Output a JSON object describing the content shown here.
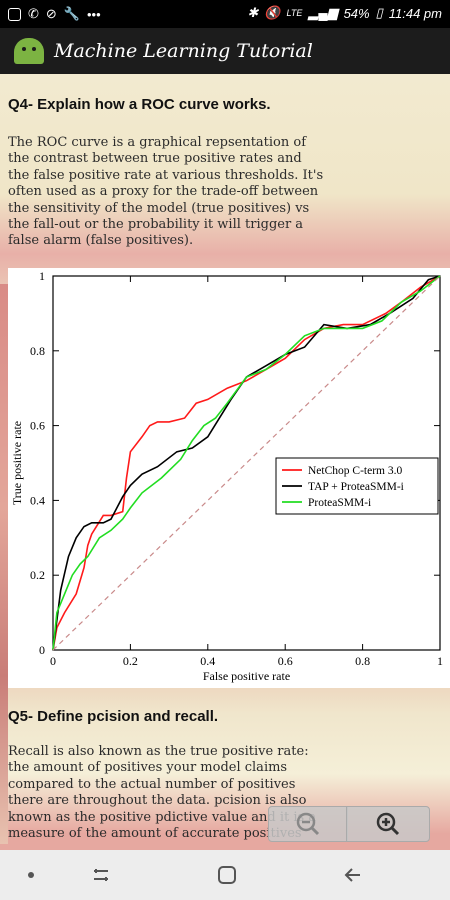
{
  "status_bar": {
    "battery": "54%",
    "time": "11:44 pm",
    "network": "LTE"
  },
  "app_bar": {
    "title": "Machine Learning Tutorial"
  },
  "q4": {
    "heading": "Q4- Explain how a ROC curve works.",
    "lines": [
      "The ROC curve is a graphical repsentation of",
      "the contrast between true positive rates and",
      "the false positive rate at various thresholds. It's",
      "often used as a proxy for the trade-off between",
      "the sensitivity of the model (true positives) vs",
      "the fall-out or the probability it will trigger a",
      "false alarm (false positives)."
    ]
  },
  "q5": {
    "heading": "Q5- Define pcision and recall.",
    "lines": [
      "Recall is also known as the true positive rate:",
      "the amount of positives your model claims",
      "compared to the actual number of positives",
      "there are throughout the data. pcision is also",
      "known as the positive pdictive value and it is a",
      "measure of the amount of accurate positives"
    ]
  },
  "chart_data": {
    "type": "line",
    "xlabel": "False positive rate",
    "ylabel": "True positive rate",
    "xlim": [
      0,
      1
    ],
    "ylim": [
      0,
      1
    ],
    "x_ticks": [
      "0",
      "0.2",
      "0.4",
      "0.6",
      "0.8",
      "1"
    ],
    "y_ticks": [
      "0",
      "0.2",
      "0.4",
      "0.6",
      "0.8",
      "1"
    ],
    "legend_position": "center-right",
    "series": [
      {
        "name": "NetChop C-term 3.0",
        "color": "#ff1a1a",
        "points": [
          [
            0,
            0
          ],
          [
            0.01,
            0.06
          ],
          [
            0.03,
            0.1
          ],
          [
            0.06,
            0.15
          ],
          [
            0.08,
            0.22
          ],
          [
            0.09,
            0.28
          ],
          [
            0.1,
            0.31
          ],
          [
            0.13,
            0.36
          ],
          [
            0.15,
            0.36
          ],
          [
            0.18,
            0.37
          ],
          [
            0.19,
            0.46
          ],
          [
            0.2,
            0.53
          ],
          [
            0.23,
            0.57
          ],
          [
            0.25,
            0.6
          ],
          [
            0.27,
            0.61
          ],
          [
            0.3,
            0.61
          ],
          [
            0.34,
            0.62
          ],
          [
            0.37,
            0.66
          ],
          [
            0.4,
            0.67
          ],
          [
            0.45,
            0.7
          ],
          [
            0.5,
            0.72
          ],
          [
            0.55,
            0.75
          ],
          [
            0.6,
            0.78
          ],
          [
            0.65,
            0.83
          ],
          [
            0.7,
            0.86
          ],
          [
            0.75,
            0.87
          ],
          [
            0.8,
            0.87
          ],
          [
            0.86,
            0.9
          ],
          [
            0.9,
            0.93
          ],
          [
            0.95,
            0.97
          ],
          [
            1,
            1
          ]
        ]
      },
      {
        "name": "TAP + ProteaSMM-i",
        "color": "#000000",
        "points": [
          [
            0,
            0
          ],
          [
            0.01,
            0.08
          ],
          [
            0.02,
            0.16
          ],
          [
            0.04,
            0.25
          ],
          [
            0.06,
            0.3
          ],
          [
            0.08,
            0.33
          ],
          [
            0.1,
            0.34
          ],
          [
            0.13,
            0.34
          ],
          [
            0.15,
            0.35
          ],
          [
            0.18,
            0.41
          ],
          [
            0.2,
            0.44
          ],
          [
            0.23,
            0.47
          ],
          [
            0.27,
            0.49
          ],
          [
            0.32,
            0.53
          ],
          [
            0.36,
            0.54
          ],
          [
            0.4,
            0.57
          ],
          [
            0.43,
            0.62
          ],
          [
            0.46,
            0.67
          ],
          [
            0.5,
            0.73
          ],
          [
            0.55,
            0.76
          ],
          [
            0.6,
            0.79
          ],
          [
            0.65,
            0.81
          ],
          [
            0.7,
            0.87
          ],
          [
            0.76,
            0.86
          ],
          [
            0.82,
            0.87
          ],
          [
            0.87,
            0.9
          ],
          [
            0.93,
            0.94
          ],
          [
            0.97,
            0.99
          ],
          [
            1,
            1
          ]
        ]
      },
      {
        "name": "ProteaSMM-i",
        "color": "#22dd22",
        "points": [
          [
            0,
            0
          ],
          [
            0.01,
            0.1
          ],
          [
            0.03,
            0.15
          ],
          [
            0.05,
            0.2
          ],
          [
            0.07,
            0.23
          ],
          [
            0.09,
            0.25
          ],
          [
            0.12,
            0.3
          ],
          [
            0.15,
            0.32
          ],
          [
            0.18,
            0.35
          ],
          [
            0.2,
            0.38
          ],
          [
            0.23,
            0.42
          ],
          [
            0.28,
            0.46
          ],
          [
            0.33,
            0.51
          ],
          [
            0.36,
            0.56
          ],
          [
            0.39,
            0.6
          ],
          [
            0.42,
            0.62
          ],
          [
            0.45,
            0.66
          ],
          [
            0.5,
            0.73
          ],
          [
            0.55,
            0.75
          ],
          [
            0.6,
            0.79
          ],
          [
            0.65,
            0.84
          ],
          [
            0.7,
            0.86
          ],
          [
            0.75,
            0.86
          ],
          [
            0.8,
            0.86
          ],
          [
            0.85,
            0.88
          ],
          [
            0.9,
            0.93
          ],
          [
            0.95,
            0.96
          ],
          [
            1,
            1
          ]
        ]
      },
      {
        "name": "",
        "color": "#c98a8a",
        "dashed": true,
        "points": [
          [
            0,
            0
          ],
          [
            1,
            1
          ]
        ]
      }
    ]
  }
}
